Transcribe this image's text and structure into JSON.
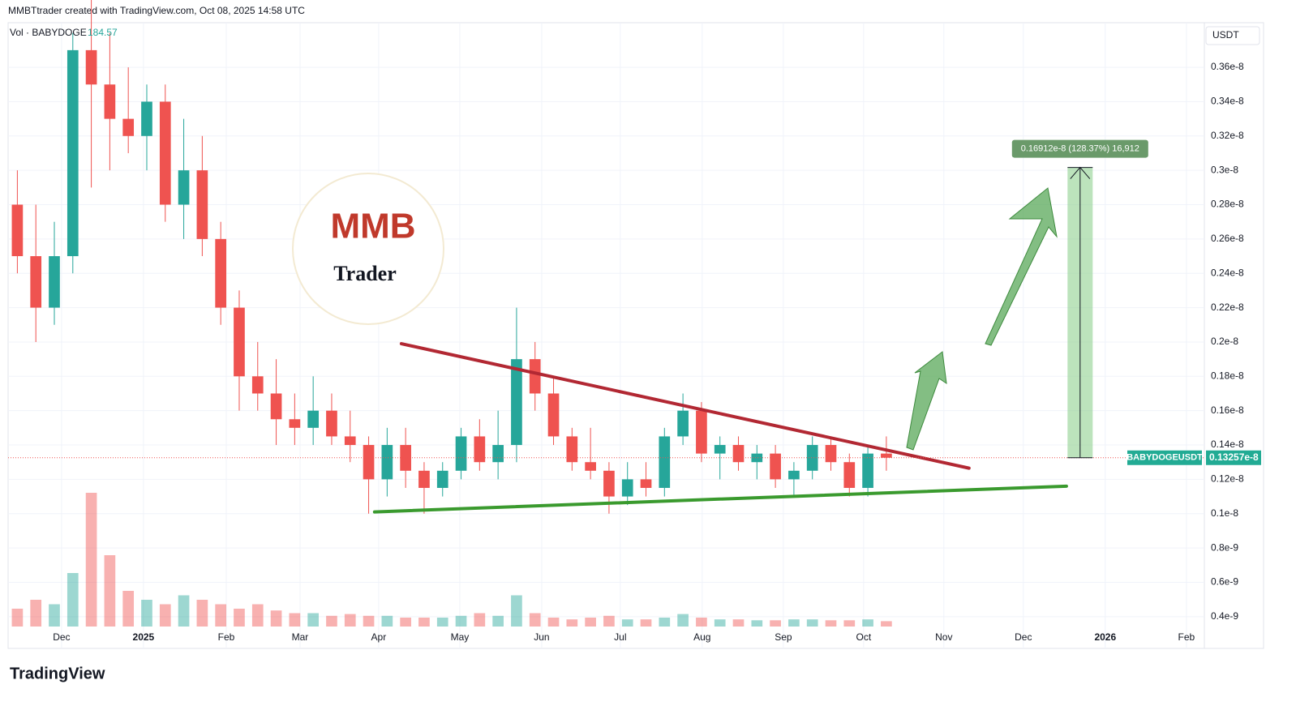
{
  "header": "MMBTtrader created with TradingView.com, Oct 08, 2025 14:58 UTC",
  "footer": "TradingView",
  "logo": {
    "top": "MMB",
    "bottom": "Trader"
  },
  "chart_data": {
    "type": "candlestick",
    "currency": "USDT",
    "volume_label": "Vol · BABYDOGE",
    "volume_value": "184.57",
    "categories": [
      null,
      null,
      null,
      null,
      null,
      null,
      null,
      null,
      null,
      null,
      null,
      null,
      null,
      null,
      null,
      null,
      null,
      null,
      null,
      null,
      null,
      null,
      null,
      null,
      null,
      null,
      null,
      null,
      null,
      null,
      null,
      null,
      null,
      null,
      null,
      null,
      null,
      null,
      null,
      null,
      null,
      null,
      null,
      null,
      null,
      null,
      null,
      null
    ],
    "open": [
      2.8e-09,
      2.5e-09,
      2.2e-09,
      2.5e-09,
      3.7e-09,
      3.5e-09,
      3.3e-09,
      3.2e-09,
      3.4e-09,
      2.8e-09,
      3e-09,
      2.6e-09,
      2.2e-09,
      1.8e-09,
      1.7e-09,
      1.55e-09,
      1.5e-09,
      1.6e-09,
      1.45e-09,
      1.4e-09,
      1.2e-09,
      1.4e-09,
      1.25e-09,
      1.15e-09,
      1.25e-09,
      1.45e-09,
      1.3e-09,
      1.4e-09,
      1.9e-09,
      1.7e-09,
      1.45e-09,
      1.3e-09,
      1.25e-09,
      1.1e-09,
      1.2e-09,
      1.15e-09,
      1.45e-09,
      1.6e-09,
      1.35e-09,
      1.4e-09,
      1.3e-09,
      1.35e-09,
      1.2e-09,
      1.25e-09,
      1.4e-09,
      1.3e-09,
      1.15e-09,
      1.35e-09
    ],
    "high": [
      3e-09,
      2.8e-09,
      2.7e-09,
      3.8e-09,
      4e-09,
      3.8e-09,
      3.6e-09,
      3.5e-09,
      3.5e-09,
      3.3e-09,
      3.2e-09,
      2.7e-09,
      2.3e-09,
      2e-09,
      1.9e-09,
      1.7e-09,
      1.8e-09,
      1.7e-09,
      1.6e-09,
      1.45e-09,
      1.5e-09,
      1.5e-09,
      1.3e-09,
      1.3e-09,
      1.5e-09,
      1.55e-09,
      1.6e-09,
      2.2e-09,
      2e-09,
      1.8e-09,
      1.5e-09,
      1.5e-09,
      1.3e-09,
      1.3e-09,
      1.3e-09,
      1.5e-09,
      1.7e-09,
      1.65e-09,
      1.45e-09,
      1.45e-09,
      1.4e-09,
      1.4e-09,
      1.3e-09,
      1.45e-09,
      1.45e-09,
      1.35e-09,
      1.4e-09,
      1.45e-09
    ],
    "low": [
      2.4e-09,
      2e-09,
      2.1e-09,
      2.4e-09,
      2.9e-09,
      3e-09,
      3.1e-09,
      3e-09,
      2.7e-09,
      2.6e-09,
      2.5e-09,
      2.1e-09,
      1.6e-09,
      1.6e-09,
      1.4e-09,
      1.4e-09,
      1.4e-09,
      1.4e-09,
      1.3e-09,
      1e-09,
      1.1e-09,
      1.15e-09,
      1e-09,
      1.1e-09,
      1.2e-09,
      1.25e-09,
      1.2e-09,
      1.3e-09,
      1.6e-09,
      1.4e-09,
      1.25e-09,
      1.2e-09,
      1e-09,
      1.05e-09,
      1.1e-09,
      1.1e-09,
      1.4e-09,
      1.3e-09,
      1.2e-09,
      1.25e-09,
      1.2e-09,
      1.15e-09,
      1.1e-09,
      1.2e-09,
      1.25e-09,
      1.1e-09,
      1.1e-09,
      1.25e-09
    ],
    "close": [
      2.5e-09,
      2.2e-09,
      2.5e-09,
      3.7e-09,
      3.5e-09,
      3.3e-09,
      3.2e-09,
      3.4e-09,
      2.8e-09,
      3e-09,
      2.6e-09,
      2.2e-09,
      1.8e-09,
      1.7e-09,
      1.55e-09,
      1.5e-09,
      1.6e-09,
      1.45e-09,
      1.4e-09,
      1.2e-09,
      1.4e-09,
      1.25e-09,
      1.15e-09,
      1.25e-09,
      1.45e-09,
      1.3e-09,
      1.4e-09,
      1.9e-09,
      1.7e-09,
      1.45e-09,
      1.3e-09,
      1.25e-09,
      1.1e-09,
      1.2e-09,
      1.15e-09,
      1.45e-09,
      1.6e-09,
      1.35e-09,
      1.4e-09,
      1.3e-09,
      1.35e-09,
      1.2e-09,
      1.25e-09,
      1.4e-09,
      1.3e-09,
      1.15e-09,
      1.35e-09,
      1.3257e-09
    ],
    "volume": [
      20,
      30,
      25,
      60,
      150,
      80,
      40,
      30,
      25,
      35,
      30,
      25,
      20,
      25,
      18,
      15,
      15,
      12,
      14,
      12,
      12,
      10,
      10,
      10,
      12,
      15,
      12,
      35,
      15,
      10,
      8,
      10,
      12,
      8,
      8,
      10,
      14,
      10,
      8,
      8,
      7,
      7,
      8,
      8,
      7,
      7,
      8,
      6
    ],
    "vlim": [
      0,
      200
    ],
    "up_color": "#26a69a",
    "down_color": "#ef5350",
    "xlim": [
      -0.5,
      64.2
    ],
    "xticks": [
      {
        "value": 2.39,
        "label": "Dec"
      },
      {
        "value": 6.82,
        "label": "2025"
      },
      {
        "value": 11.3,
        "label": "Feb"
      },
      {
        "value": 15.29,
        "label": "Mar"
      },
      {
        "value": 19.54,
        "label": "Apr"
      },
      {
        "value": 23.93,
        "label": "May"
      },
      {
        "value": 28.36,
        "label": "Jun"
      },
      {
        "value": 32.61,
        "label": "Jul"
      },
      {
        "value": 37.04,
        "label": "Aug"
      },
      {
        "value": 41.43,
        "label": "Sep"
      },
      {
        "value": 45.77,
        "label": "Oct"
      },
      {
        "value": 50.11,
        "label": "Nov"
      },
      {
        "value": 54.41,
        "label": "Dec"
      },
      {
        "value": 58.84,
        "label": "2026"
      },
      {
        "value": 63.23,
        "label": "Feb"
      }
    ],
    "ylim": [
      2.15e-10,
      3.86e-09
    ],
    "yticks": [
      {
        "value": 4e-10,
        "label": "0.4e-9"
      },
      {
        "value": 6e-10,
        "label": "0.6e-9"
      },
      {
        "value": 8e-10,
        "label": "0.8e-9"
      },
      {
        "value": 1e-09,
        "label": "0.1e-8"
      },
      {
        "value": 1.2e-09,
        "label": "0.12e-8"
      },
      {
        "value": 1.4e-09,
        "label": "0.14e-8"
      },
      {
        "value": 1.6e-09,
        "label": "0.16e-8"
      },
      {
        "value": 1.8e-09,
        "label": "0.18e-8"
      },
      {
        "value": 2e-09,
        "label": "0.2e-8"
      },
      {
        "value": 2.2e-09,
        "label": "0.22e-8"
      },
      {
        "value": 2.4e-09,
        "label": "0.24e-8"
      },
      {
        "value": 2.6e-09,
        "label": "0.26e-8"
      },
      {
        "value": 2.8e-09,
        "label": "0.28e-8"
      },
      {
        "value": 3e-09,
        "label": "0.3e-8"
      },
      {
        "value": 3.2e-09,
        "label": "0.32e-8"
      },
      {
        "value": 3.4e-09,
        "label": "0.34e-8"
      },
      {
        "value": 3.6e-09,
        "label": "0.36e-8"
      }
    ],
    "grid": true,
    "last_price": {
      "symbol": "BABYDOGEUSDT",
      "value": 1.3257e-09,
      "label": "0.13257e-8",
      "color": "#22ab94"
    },
    "trendlines": [
      {
        "color": "#b22833",
        "x": [
          20.77,
          51.47
        ],
        "y": [
          1.99e-09,
          1.265e-09
        ]
      },
      {
        "color": "#3a9a2e",
        "x": [
          19.32,
          56.74
        ],
        "y": [
          1.01e-09,
          1.16e-09
        ]
      }
    ],
    "measure": {
      "x": [
        56.8,
        58.16
      ],
      "from": 1.3257e-09,
      "to": 3.0169e-09,
      "label": "0.16912e-8 (128.37%) 16,912"
    }
  }
}
